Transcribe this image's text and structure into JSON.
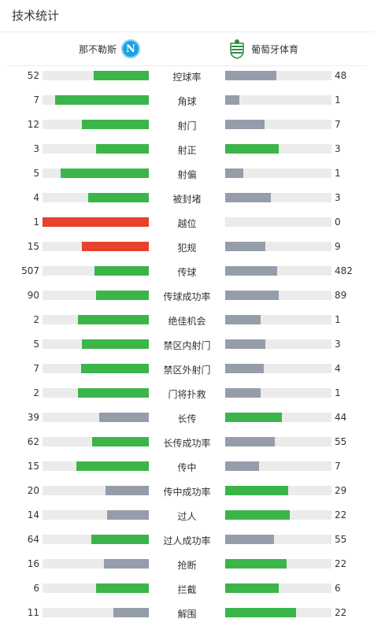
{
  "header": {
    "title": "技术统计"
  },
  "teams": {
    "home": {
      "name": "那不勒斯",
      "logo_letter": "N"
    },
    "away": {
      "name": "葡萄牙体育"
    }
  },
  "colors": {
    "win": "#3bb54a",
    "loss": "#959daa",
    "card": "#e8412c",
    "track": "#ebebeb"
  },
  "stats": [
    {
      "label": "控球率",
      "home": "52",
      "away": "48",
      "home_frac": 0.52,
      "away_frac": 0.48,
      "home_color": "#3bb54a",
      "away_color": "#959daa"
    },
    {
      "label": "角球",
      "home": "7",
      "away": "1",
      "home_frac": 0.88,
      "away_frac": 0.13,
      "home_color": "#3bb54a",
      "away_color": "#959daa"
    },
    {
      "label": "射门",
      "home": "12",
      "away": "7",
      "home_frac": 0.63,
      "away_frac": 0.37,
      "home_color": "#3bb54a",
      "away_color": "#959daa"
    },
    {
      "label": "射正",
      "home": "3",
      "away": "3",
      "home_frac": 0.5,
      "away_frac": 0.5,
      "home_color": "#3bb54a",
      "away_color": "#3bb54a"
    },
    {
      "label": "射偏",
      "home": "5",
      "away": "1",
      "home_frac": 0.83,
      "away_frac": 0.17,
      "home_color": "#3bb54a",
      "away_color": "#959daa"
    },
    {
      "label": "被封堵",
      "home": "4",
      "away": "3",
      "home_frac": 0.57,
      "away_frac": 0.43,
      "home_color": "#3bb54a",
      "away_color": "#959daa"
    },
    {
      "label": "越位",
      "home": "1",
      "away": "0",
      "home_frac": 1.0,
      "away_frac": 0.0,
      "home_color": "#e8412c",
      "away_color": "#959daa"
    },
    {
      "label": "犯规",
      "home": "15",
      "away": "9",
      "home_frac": 0.63,
      "away_frac": 0.38,
      "home_color": "#e8412c",
      "away_color": "#959daa"
    },
    {
      "label": "传球",
      "home": "507",
      "away": "482",
      "home_frac": 0.51,
      "away_frac": 0.49,
      "home_color": "#3bb54a",
      "away_color": "#959daa"
    },
    {
      "label": "传球成功率",
      "home": "90",
      "away": "89",
      "home_frac": 0.5,
      "away_frac": 0.5,
      "home_color": "#3bb54a",
      "away_color": "#959daa"
    },
    {
      "label": "绝佳机会",
      "home": "2",
      "away": "1",
      "home_frac": 0.67,
      "away_frac": 0.33,
      "home_color": "#3bb54a",
      "away_color": "#959daa"
    },
    {
      "label": "禁区内射门",
      "home": "5",
      "away": "3",
      "home_frac": 0.63,
      "away_frac": 0.38,
      "home_color": "#3bb54a",
      "away_color": "#959daa"
    },
    {
      "label": "禁区外射门",
      "home": "7",
      "away": "4",
      "home_frac": 0.64,
      "away_frac": 0.36,
      "home_color": "#3bb54a",
      "away_color": "#959daa"
    },
    {
      "label": "门将扑救",
      "home": "2",
      "away": "1",
      "home_frac": 0.67,
      "away_frac": 0.33,
      "home_color": "#3bb54a",
      "away_color": "#959daa"
    },
    {
      "label": "长传",
      "home": "39",
      "away": "44",
      "home_frac": 0.47,
      "away_frac": 0.53,
      "home_color": "#959daa",
      "away_color": "#3bb54a"
    },
    {
      "label": "长传成功率",
      "home": "62",
      "away": "55",
      "home_frac": 0.53,
      "away_frac": 0.47,
      "home_color": "#3bb54a",
      "away_color": "#959daa"
    },
    {
      "label": "传中",
      "home": "15",
      "away": "7",
      "home_frac": 0.68,
      "away_frac": 0.32,
      "home_color": "#3bb54a",
      "away_color": "#959daa"
    },
    {
      "label": "传中成功率",
      "home": "20",
      "away": "29",
      "home_frac": 0.41,
      "away_frac": 0.59,
      "home_color": "#959daa",
      "away_color": "#3bb54a"
    },
    {
      "label": "过人",
      "home": "14",
      "away": "22",
      "home_frac": 0.39,
      "away_frac": 0.61,
      "home_color": "#959daa",
      "away_color": "#3bb54a"
    },
    {
      "label": "过人成功率",
      "home": "64",
      "away": "55",
      "home_frac": 0.54,
      "away_frac": 0.46,
      "home_color": "#3bb54a",
      "away_color": "#959daa"
    },
    {
      "label": "抢断",
      "home": "16",
      "away": "22",
      "home_frac": 0.42,
      "away_frac": 0.58,
      "home_color": "#959daa",
      "away_color": "#3bb54a"
    },
    {
      "label": "拦截",
      "home": "6",
      "away": "6",
      "home_frac": 0.5,
      "away_frac": 0.5,
      "home_color": "#3bb54a",
      "away_color": "#3bb54a"
    },
    {
      "label": "解围",
      "home": "11",
      "away": "22",
      "home_frac": 0.33,
      "away_frac": 0.67,
      "home_color": "#959daa",
      "away_color": "#3bb54a"
    }
  ]
}
